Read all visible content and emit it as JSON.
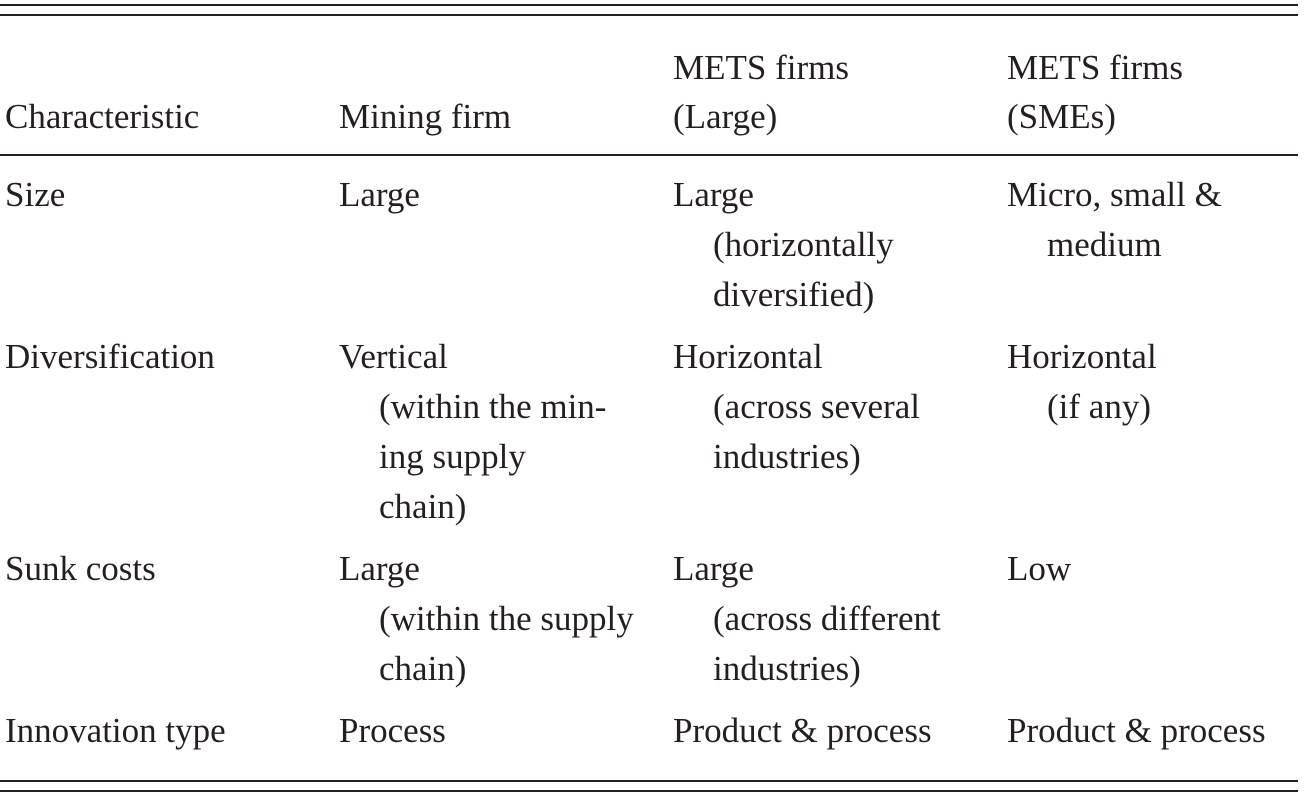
{
  "table": {
    "header": [
      [
        "Characteristic"
      ],
      [
        "Mining firm"
      ],
      [
        "METS firms",
        "(Large)"
      ],
      [
        "METS firms",
        "(SMEs)"
      ]
    ],
    "rows": [
      [
        [
          "Size"
        ],
        [
          "Large"
        ],
        [
          "Large",
          "(horizontally",
          "diversified)"
        ],
        [
          "Micro, small &",
          "medium"
        ]
      ],
      [
        [
          "Diversification"
        ],
        [
          "Vertical",
          "(within the min-",
          "ing supply",
          "chain)"
        ],
        [
          "Horizontal",
          "(across several",
          "industries)"
        ],
        [
          "Horizontal",
          "(if any)"
        ]
      ],
      [
        [
          "Sunk costs"
        ],
        [
          "Large",
          "(within the supply",
          "chain)"
        ],
        [
          "Large",
          "(across different",
          "industries)"
        ],
        [
          "Low"
        ]
      ],
      [
        [
          "Innovation type"
        ],
        [
          "Process"
        ],
        [
          "Product & process"
        ],
        [
          "Product & process"
        ]
      ]
    ]
  }
}
